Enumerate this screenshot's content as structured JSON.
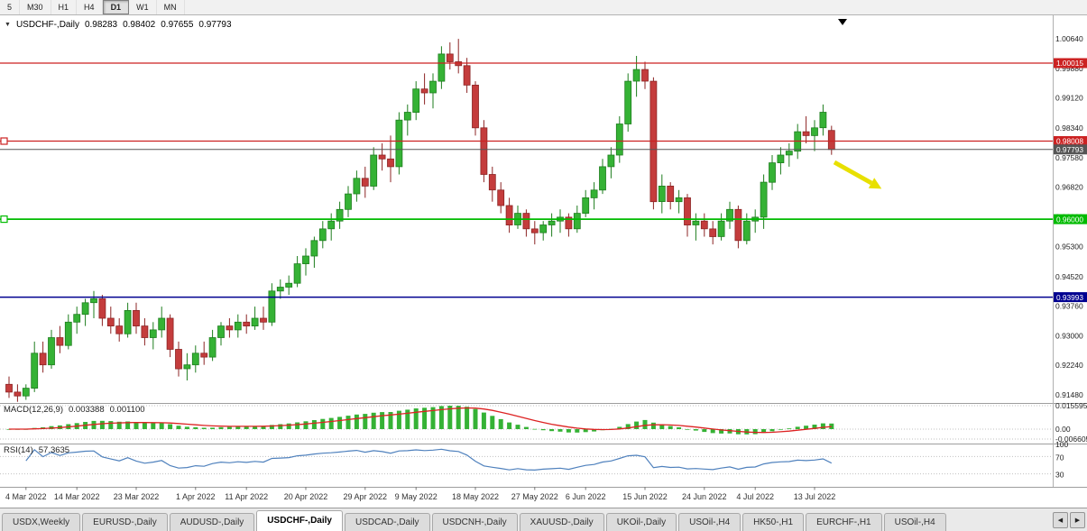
{
  "toolbar": {
    "buttons": [
      {
        "label": "5",
        "active": false
      },
      {
        "label": "M30",
        "active": false
      },
      {
        "label": "H1",
        "active": false
      },
      {
        "label": "H4",
        "active": false
      },
      {
        "label": "D1",
        "active": true
      },
      {
        "label": "W1",
        "active": false
      },
      {
        "label": "MN",
        "active": false
      }
    ]
  },
  "icons": {
    "chart_dropdown": "▼",
    "scroll_left": "◀",
    "scroll_right": "▶"
  },
  "chart_header": {
    "symbol": "USDCHF-,Daily",
    "open": "0.98283",
    "high": "0.98402",
    "low": "0.97655",
    "close": "0.97793"
  },
  "chart_data": {
    "type": "candlestick",
    "symbol": "USDCHF",
    "timeframe": "Daily",
    "ohlc": [
      [
        0.9175,
        0.9195,
        0.914,
        0.9155
      ],
      [
        0.9155,
        0.9175,
        0.913,
        0.9145
      ],
      [
        0.9145,
        0.9175,
        0.9135,
        0.9165
      ],
      [
        0.9165,
        0.9285,
        0.9155,
        0.9255
      ],
      [
        0.9255,
        0.9285,
        0.9205,
        0.9225
      ],
      [
        0.9225,
        0.9315,
        0.9215,
        0.9295
      ],
      [
        0.9295,
        0.9325,
        0.9255,
        0.9275
      ],
      [
        0.9275,
        0.9355,
        0.9265,
        0.9335
      ],
      [
        0.9335,
        0.9375,
        0.9305,
        0.9355
      ],
      [
        0.9355,
        0.9395,
        0.9325,
        0.9385
      ],
      [
        0.9385,
        0.9415,
        0.9345,
        0.9395
      ],
      [
        0.9395,
        0.9405,
        0.9325,
        0.9345
      ],
      [
        0.9345,
        0.9375,
        0.9305,
        0.9325
      ],
      [
        0.9325,
        0.9345,
        0.9285,
        0.9305
      ],
      [
        0.9305,
        0.9385,
        0.9295,
        0.9365
      ],
      [
        0.9365,
        0.9385,
        0.9305,
        0.9325
      ],
      [
        0.9325,
        0.9345,
        0.9275,
        0.9295
      ],
      [
        0.9295,
        0.9335,
        0.9265,
        0.9315
      ],
      [
        0.9315,
        0.9375,
        0.9295,
        0.9345
      ],
      [
        0.9345,
        0.9355,
        0.9245,
        0.9265
      ],
      [
        0.9265,
        0.9285,
        0.9195,
        0.9215
      ],
      [
        0.9215,
        0.9255,
        0.9185,
        0.9225
      ],
      [
        0.9225,
        0.9275,
        0.9205,
        0.9255
      ],
      [
        0.9255,
        0.9285,
        0.9225,
        0.9245
      ],
      [
        0.9245,
        0.9315,
        0.9235,
        0.9295
      ],
      [
        0.9295,
        0.9335,
        0.9275,
        0.9325
      ],
      [
        0.9325,
        0.9345,
        0.9295,
        0.9315
      ],
      [
        0.9315,
        0.9355,
        0.9295,
        0.9335
      ],
      [
        0.9335,
        0.9355,
        0.9305,
        0.9325
      ],
      [
        0.9325,
        0.9375,
        0.9315,
        0.9345
      ],
      [
        0.9345,
        0.9375,
        0.9315,
        0.9335
      ],
      [
        0.9335,
        0.9435,
        0.9325,
        0.9415
      ],
      [
        0.9415,
        0.9445,
        0.9395,
        0.9425
      ],
      [
        0.9425,
        0.9455,
        0.9405,
        0.9435
      ],
      [
        0.9435,
        0.9505,
        0.9425,
        0.9485
      ],
      [
        0.9485,
        0.9525,
        0.9455,
        0.9505
      ],
      [
        0.9505,
        0.9555,
        0.9475,
        0.9545
      ],
      [
        0.9545,
        0.9595,
        0.9525,
        0.9575
      ],
      [
        0.9575,
        0.9615,
        0.9545,
        0.9595
      ],
      [
        0.9595,
        0.9645,
        0.9575,
        0.9625
      ],
      [
        0.9625,
        0.9685,
        0.9605,
        0.9665
      ],
      [
        0.9665,
        0.9725,
        0.9645,
        0.9705
      ],
      [
        0.9705,
        0.9735,
        0.9655,
        0.9685
      ],
      [
        0.9685,
        0.9785,
        0.9675,
        0.9765
      ],
      [
        0.9765,
        0.9795,
        0.9725,
        0.9755
      ],
      [
        0.9755,
        0.9815,
        0.9695,
        0.9735
      ],
      [
        0.9735,
        0.9875,
        0.9715,
        0.9855
      ],
      [
        0.9855,
        0.9895,
        0.9815,
        0.9875
      ],
      [
        0.9875,
        0.9955,
        0.9855,
        0.9935
      ],
      [
        0.9935,
        0.9975,
        0.9895,
        0.9925
      ],
      [
        0.9925,
        0.9975,
        0.9885,
        0.9955
      ],
      [
        0.9955,
        1.0045,
        0.9935,
        1.0025
      ],
      [
        1.0025,
        1.0055,
        0.9985,
        1.0005
      ],
      [
        1.0005,
        1.0064,
        0.9975,
        0.9995
      ],
      [
        0.9995,
        1.0015,
        0.9925,
        0.9945
      ],
      [
        0.9945,
        0.9955,
        0.9815,
        0.9835
      ],
      [
        0.9835,
        0.9855,
        0.9695,
        0.9715
      ],
      [
        0.9715,
        0.9735,
        0.9645,
        0.9675
      ],
      [
        0.9675,
        0.9695,
        0.9615,
        0.9635
      ],
      [
        0.9635,
        0.9655,
        0.9565,
        0.9585
      ],
      [
        0.9585,
        0.9635,
        0.9575,
        0.9615
      ],
      [
        0.9615,
        0.9625,
        0.9555,
        0.9575
      ],
      [
        0.9575,
        0.9595,
        0.9535,
        0.9565
      ],
      [
        0.9565,
        0.9595,
        0.9545,
        0.9585
      ],
      [
        0.9585,
        0.9615,
        0.9555,
        0.9595
      ],
      [
        0.9595,
        0.9625,
        0.9565,
        0.9605
      ],
      [
        0.9605,
        0.9615,
        0.9555,
        0.9575
      ],
      [
        0.9575,
        0.9635,
        0.9565,
        0.9615
      ],
      [
        0.9615,
        0.9675,
        0.9605,
        0.9655
      ],
      [
        0.9655,
        0.9695,
        0.9625,
        0.9675
      ],
      [
        0.9675,
        0.9755,
        0.9665,
        0.9735
      ],
      [
        0.9735,
        0.9785,
        0.9705,
        0.9765
      ],
      [
        0.9765,
        0.9865,
        0.9745,
        0.9845
      ],
      [
        0.9845,
        0.9975,
        0.9825,
        0.9955
      ],
      [
        0.9955,
        1.002,
        0.9915,
        0.9985
      ],
      [
        0.9985,
        1.0005,
        0.9935,
        0.9955
      ],
      [
        0.9955,
        0.9965,
        0.9625,
        0.9645
      ],
      [
        0.9645,
        0.9715,
        0.9615,
        0.9685
      ],
      [
        0.9685,
        0.9695,
        0.9625,
        0.9645
      ],
      [
        0.9645,
        0.9675,
        0.9615,
        0.9655
      ],
      [
        0.9655,
        0.9665,
        0.9555,
        0.9585
      ],
      [
        0.9585,
        0.9615,
        0.9545,
        0.9595
      ],
      [
        0.9595,
        0.9615,
        0.9555,
        0.9575
      ],
      [
        0.9575,
        0.9595,
        0.9535,
        0.9555
      ],
      [
        0.9555,
        0.9615,
        0.9545,
        0.9595
      ],
      [
        0.9595,
        0.9645,
        0.9575,
        0.9625
      ],
      [
        0.9625,
        0.9635,
        0.9525,
        0.9545
      ],
      [
        0.9545,
        0.9615,
        0.9535,
        0.9595
      ],
      [
        0.9595,
        0.9625,
        0.9565,
        0.9605
      ],
      [
        0.9605,
        0.9715,
        0.9575,
        0.9695
      ],
      [
        0.9695,
        0.9765,
        0.9675,
        0.9745
      ],
      [
        0.9745,
        0.9785,
        0.9715,
        0.9765
      ],
      [
        0.9765,
        0.9795,
        0.9735,
        0.9775
      ],
      [
        0.9775,
        0.9845,
        0.9755,
        0.9825
      ],
      [
        0.9825,
        0.9865,
        0.9795,
        0.9815
      ],
      [
        0.9815,
        0.9855,
        0.9775,
        0.9835
      ],
      [
        0.9835,
        0.9895,
        0.9815,
        0.9875
      ],
      [
        0.98283,
        0.98402,
        0.97655,
        0.97793
      ]
    ],
    "date_ticks": [
      {
        "index": 2,
        "label": "4 Mar 2022"
      },
      {
        "index": 8,
        "label": "14 Mar 2022"
      },
      {
        "index": 15,
        "label": "23 Mar 2022"
      },
      {
        "index": 22,
        "label": "1 Apr 2022"
      },
      {
        "index": 28,
        "label": "11 Apr 2022"
      },
      {
        "index": 35,
        "label": "20 Apr 2022"
      },
      {
        "index": 42,
        "label": "29 Apr 2022"
      },
      {
        "index": 48,
        "label": "9 May 2022"
      },
      {
        "index": 55,
        "label": "18 May 2022"
      },
      {
        "index": 62,
        "label": "27 May 2022"
      },
      {
        "index": 68,
        "label": "6 Jun 2022"
      },
      {
        "index": 75,
        "label": "15 Jun 2022"
      },
      {
        "index": 82,
        "label": "24 Jun 2022"
      },
      {
        "index": 88,
        "label": "4 Jul 2022"
      },
      {
        "index": 95,
        "label": "13 Jul 2022"
      }
    ],
    "price_axis_labels": [
      "1.00640",
      "0.99880",
      "0.99120",
      "0.98340",
      "0.97580",
      "0.96820",
      "0.96060",
      "0.95300",
      "0.94520",
      "0.93760",
      "0.93000",
      "0.92240",
      "0.91480"
    ],
    "levels": [
      {
        "value": 1.00015,
        "label": "1.00015",
        "color": "#cc2222",
        "width": 1.2,
        "left_marker": false,
        "name": "resistance-line-1-00015"
      },
      {
        "value": 0.98008,
        "label": "0.98008",
        "color": "#cc2222",
        "width": 1.2,
        "left_marker": true,
        "name": "resistance-line-0-98008"
      },
      {
        "value": 0.97793,
        "label": "0.97793",
        "color": "#555555",
        "width": 1.0,
        "left_marker": false,
        "name": "current-price-line"
      },
      {
        "value": 0.96,
        "label": "0.96000",
        "color": "#00bb00",
        "width": 1.8,
        "left_marker": true,
        "name": "support-line-0-96000"
      },
      {
        "value": 0.93993,
        "label": "0.93993",
        "color": "#000090",
        "width": 1.5,
        "left_marker": false,
        "name": "support-line-0-93993"
      }
    ],
    "colors": {
      "bull": "#35b235",
      "bull_border": "#1e7e1e",
      "bear": "#c43c3c",
      "bear_border": "#8c2424",
      "macd_hist": "#35b235",
      "macd_signal": "#dd2222",
      "rsi_line": "#4f81bd",
      "grid_dotted": "#c0c0c0"
    },
    "annotations": [
      {
        "type": "arrow",
        "name": "sell-signal-arrow",
        "direction": "down-right",
        "color": "#e8e000"
      },
      {
        "type": "marker",
        "name": "bar-marker",
        "color": "#000000"
      }
    ]
  },
  "macd_panel": {
    "label": "MACD(12,26,9)",
    "value_main": "0.003388",
    "value_signal": "0.001100",
    "axis_labels": [
      "0.015595",
      "0.00",
      "-0.006605"
    ],
    "params": {
      "fast": 12,
      "slow": 26,
      "signal": 9
    }
  },
  "rsi_panel": {
    "label": "RSI(14)",
    "value": "57.3635",
    "period": 14,
    "levels": [
      70,
      30
    ],
    "axis_labels": [
      "100",
      "70",
      "30"
    ]
  },
  "tabbar": {
    "tabs": [
      {
        "label": "USDX,Weekly",
        "active": false
      },
      {
        "label": "EURUSD-,Daily",
        "active": false
      },
      {
        "label": "AUDUSD-,Daily",
        "active": false
      },
      {
        "label": "USDCHF-,Daily",
        "active": true
      },
      {
        "label": "USDCAD-,Daily",
        "active": false
      },
      {
        "label": "USDCNH-,Daily",
        "active": false
      },
      {
        "label": "XAUUSD-,Daily",
        "active": false
      },
      {
        "label": "UKOil-,Daily",
        "active": false
      },
      {
        "label": "USOil-,H4",
        "active": false
      },
      {
        "label": "HK50-,H1",
        "active": false
      },
      {
        "label": "EURCHF-,H1",
        "active": false
      },
      {
        "label": "USOil-,H4",
        "active": false
      }
    ]
  }
}
